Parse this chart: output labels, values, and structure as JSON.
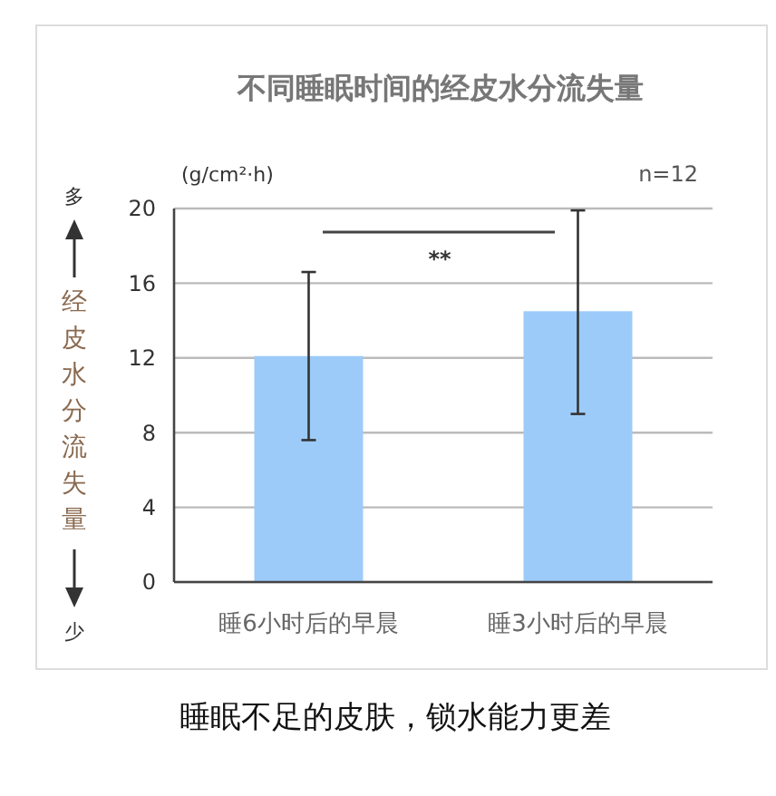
{
  "chart_data": {
    "type": "bar",
    "title": "不同睡眠时间的经皮水分流失量",
    "ylabel": "经皮水分流失量",
    "categories": [
      "睡6小时后的早晨",
      "睡3小时后的早晨"
    ],
    "values": [
      12.1,
      14.5
    ],
    "errors": [
      [
        7.6,
        16.6
      ],
      [
        9.0,
        19.9
      ]
    ],
    "color": "#9ccbfa",
    "ylim": [
      0,
      20
    ],
    "yticks": [
      0,
      4,
      8,
      12,
      16,
      20
    ],
    "grid": "y",
    "annotations": [
      "(g/cm²·h)",
      "n=12",
      "**",
      "多",
      "少",
      "睡眠不足的皮肤，锁水能力更差"
    ]
  }
}
